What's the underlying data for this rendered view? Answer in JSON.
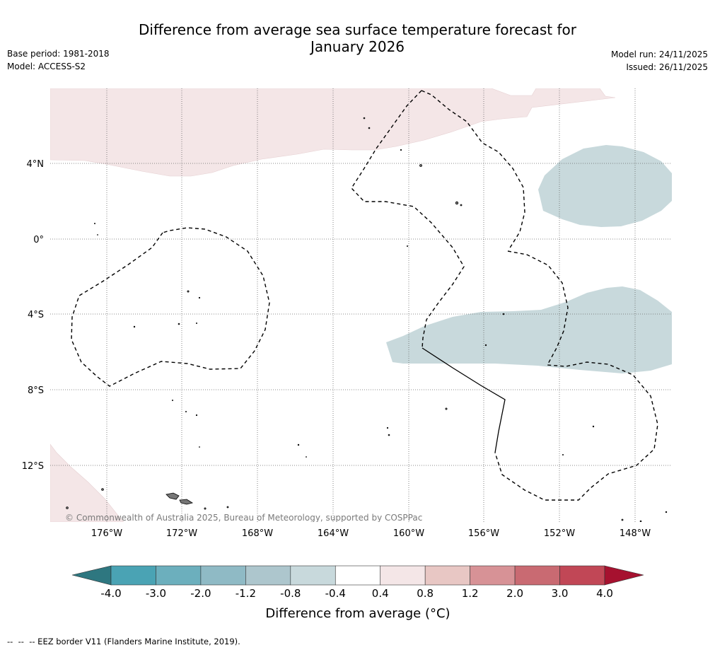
{
  "header": {
    "title_line1": "Difference from average sea surface temperature forecast for",
    "title_line2": "January 2026",
    "base_period": "Base period: 1981-2018",
    "model": "Model: ACCESS-S2",
    "model_run": "Model run: 24/11/2025",
    "issued": "Issued: 26/11/2025"
  },
  "map": {
    "lon_labels": [
      "176°W",
      "172°W",
      "168°W",
      "164°W",
      "160°W",
      "156°W",
      "152°W",
      "148°W"
    ],
    "lat_labels": [
      "4°N",
      "0°",
      "4°S",
      "8°S",
      "12°S"
    ],
    "copyright": "© Commonwealth of Australia 2025, Bureau of Meteorology, supported by COSPPac"
  },
  "colorbar": {
    "tick_labels": [
      "-4.0",
      "-3.0",
      "-2.0",
      "-1.2",
      "-0.8",
      "-0.4",
      "0.4",
      "0.8",
      "1.2",
      "2.0",
      "3.0",
      "4.0"
    ],
    "colors": [
      "#4aa3b4",
      "#6cafbd",
      "#8fbac5",
      "#adc6cd",
      "#c8d9dc",
      "#ffffff",
      "#f4e6e7",
      "#e8c7c4",
      "#d79296",
      "#c96a72",
      "#c14756"
    ],
    "under_color": "#2e7780",
    "over_color": "#a6112f",
    "label": "Difference from average (°C)"
  },
  "footer": {
    "eez_note": "--  --  -- EEZ border V11 (Flanders Marine Institute, 2019)."
  }
}
